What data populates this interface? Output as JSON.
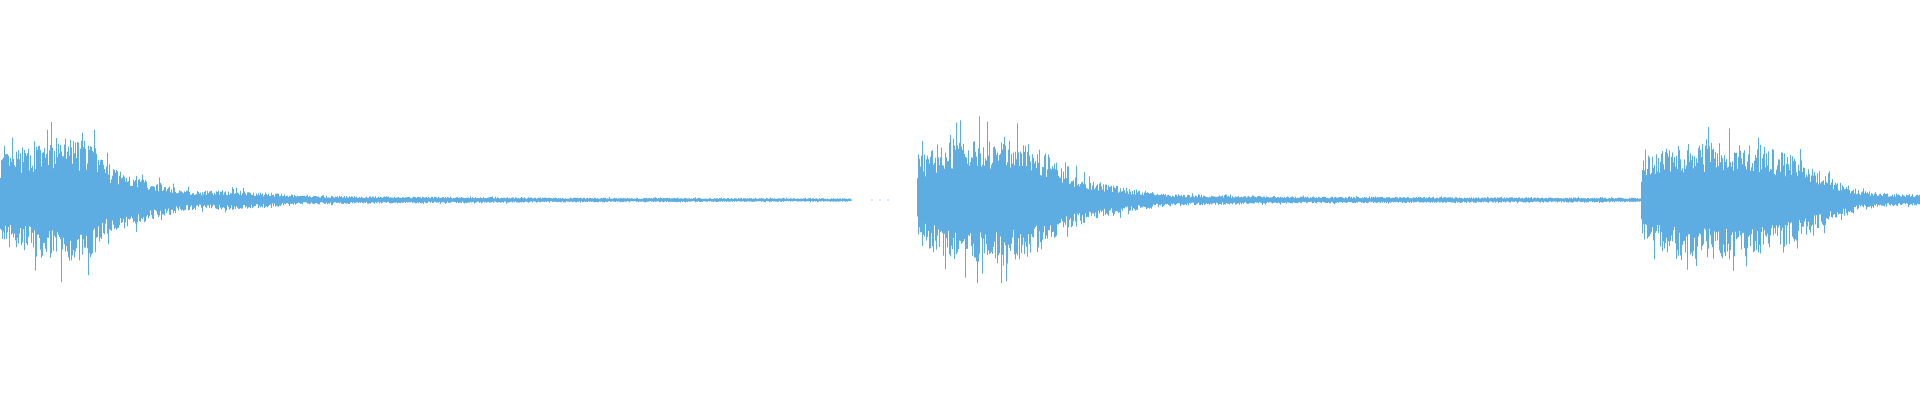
{
  "waveform": {
    "type": "audio-waveform",
    "color": "#5dade2",
    "background": "#ffffff",
    "segments": 3
  }
}
